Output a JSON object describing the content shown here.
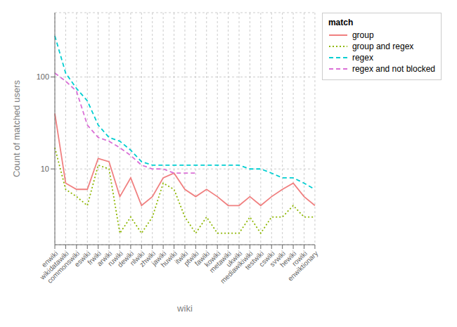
{
  "chart_data": {
    "type": "line",
    "xlabel": "wiki",
    "ylabel": "Count of matched users",
    "legend_title": "match",
    "categories": [
      "enwiki",
      "wikidatawiki",
      "commonswiki",
      "eswiki",
      "frwiki",
      "arwiki",
      "ruwiki",
      "dewiki",
      "nlwiki",
      "zhwiki",
      "jawiki",
      "huwiki",
      "itwiki",
      "ptwiki",
      "fawiki",
      "kowiki",
      "metawiki",
      "ukwiki",
      "mediawikiwiki",
      "testwiki",
      "cswiki",
      "svwiki",
      "hewiki",
      "rowiki",
      "enwiktionary"
    ],
    "series": [
      {
        "name": "group",
        "color": "#F08080",
        "line_style": "solid",
        "values": [
          40,
          7,
          6,
          6,
          13,
          12,
          5,
          8,
          4,
          5,
          8,
          9,
          6,
          5,
          6,
          5,
          4,
          4,
          5,
          4,
          5,
          6,
          7,
          5,
          4
        ]
      },
      {
        "name": "group and regex",
        "color": "#8DB600",
        "line_style": "dotted",
        "values": [
          17,
          6,
          5,
          4,
          11,
          10,
          2,
          3,
          2,
          3,
          7,
          6,
          3,
          2,
          3,
          2,
          2,
          2,
          3,
          2,
          3,
          3,
          4,
          3,
          3
        ]
      },
      {
        "name": "regex",
        "color": "#00CED1",
        "line_style": "dashed",
        "values": [
          280,
          110,
          75,
          55,
          30,
          22,
          20,
          16,
          12,
          11,
          11,
          11,
          11,
          11,
          11,
          11,
          11,
          11,
          10,
          10,
          9,
          8,
          8,
          7,
          6
        ]
      },
      {
        "name": "regex and not blocked",
        "color": "#DA70D6",
        "line_style": "dashed",
        "values": [
          110,
          90,
          70,
          30,
          22,
          20,
          17,
          14,
          11,
          10,
          10,
          9,
          9,
          9,
          null,
          null,
          null,
          null,
          null,
          null,
          null,
          null,
          null,
          null,
          null
        ]
      }
    ],
    "log": "y",
    "ylim": [
      1.5,
      500
    ],
    "yticks": [
      10,
      100
    ],
    "grid": true,
    "legend": "right"
  }
}
